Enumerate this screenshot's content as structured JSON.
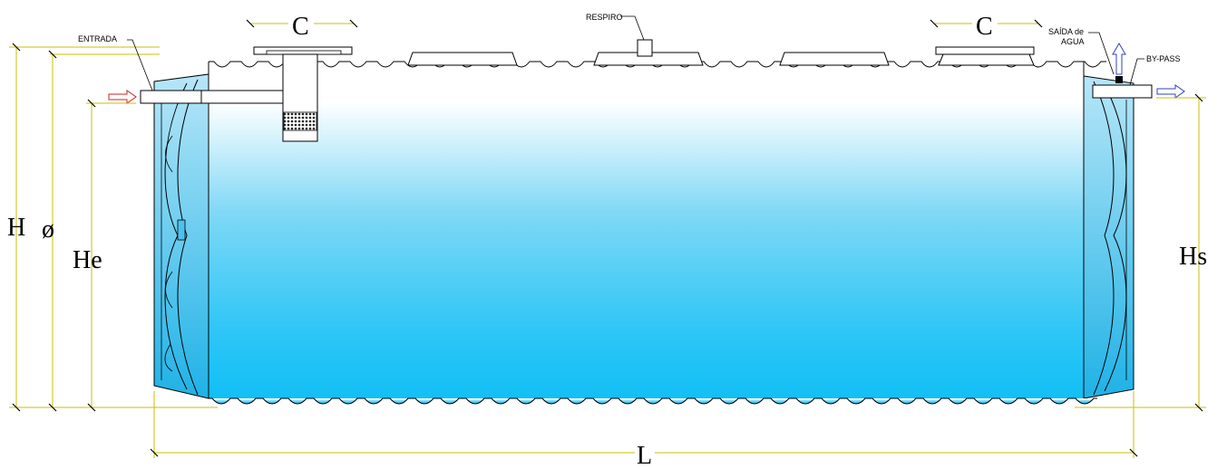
{
  "colors": {
    "tank_top": "#ffffff",
    "tank_bottom": "#12c0f5",
    "end_cap": "#2bb8ea",
    "dimension_line": "#c8c000",
    "inlet_arrow": "#d62020",
    "outlet_arrow": "#3040c0"
  },
  "labels": {
    "entrada": "ENTRADA",
    "respiro": "RESPIRO",
    "saida_line1": "SAÍDA de",
    "saida_line2": "AGUA",
    "bypass": "BY-PASS"
  },
  "dimensions": {
    "H": "H",
    "diameter": "ø",
    "He": "He",
    "Hs": "Hs",
    "L": "L",
    "C_left": "C",
    "C_right": "C"
  }
}
